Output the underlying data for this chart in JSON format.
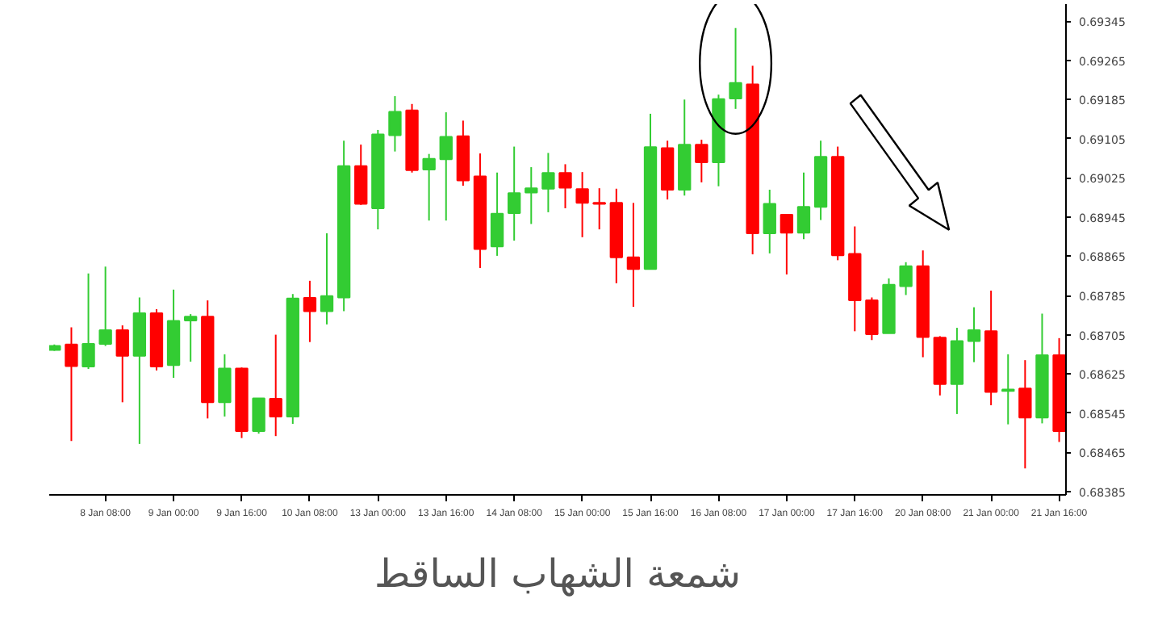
{
  "chart_data": {
    "type": "candlestick",
    "title": "شمعة الشهاب الساقط",
    "categories": [
      null,
      null,
      null,
      "8 Jan 08:00",
      null,
      null,
      null,
      "9 Jan 00:00",
      null,
      null,
      null,
      "9 Jan 16:00",
      null,
      null,
      null,
      "10 Jan 08:00",
      null,
      null,
      null,
      "13 Jan 00:00",
      null,
      null,
      null,
      "13 Jan 16:00",
      null,
      null,
      null,
      "14 Jan 08:00",
      null,
      null,
      null,
      "15 Jan 00:00",
      null,
      null,
      null,
      "15 Jan 16:00",
      null,
      null,
      null,
      "16 Jan 08:00",
      null,
      null,
      null,
      "17 Jan 00:00",
      null,
      null,
      null,
      "17 Jan 16:00",
      null,
      null,
      null,
      "20 Jan 08:00",
      null,
      null,
      null,
      "21 Jan 00:00",
      null,
      null,
      null,
      "21 Jan 16:00"
    ],
    "ohlc": [
      [
        0.68674,
        0.68685,
        0.68672,
        0.68682
      ],
      [
        0.68685,
        0.6872,
        0.68488,
        0.68641
      ],
      [
        0.6864,
        0.6883,
        0.68635,
        0.68686
      ],
      [
        0.68686,
        0.68844,
        0.68682,
        0.68714
      ],
      [
        0.68714,
        0.68724,
        0.68567,
        0.68662
      ],
      [
        0.68662,
        0.68781,
        0.68482,
        0.68749
      ],
      [
        0.68749,
        0.68757,
        0.68632,
        0.6864
      ],
      [
        0.68643,
        0.68797,
        0.68617,
        0.68733
      ],
      [
        0.68734,
        0.68747,
        0.6865,
        0.68742
      ],
      [
        0.68742,
        0.68775,
        0.68534,
        0.68567
      ],
      [
        0.68567,
        0.68665,
        0.68538,
        0.68636
      ],
      [
        0.68636,
        0.68638,
        0.68494,
        0.68508
      ],
      [
        0.68508,
        0.68575,
        0.68503,
        0.68575
      ],
      [
        0.68574,
        0.68705,
        0.68498,
        0.68538
      ],
      [
        0.68538,
        0.68788,
        0.68523,
        0.68779
      ],
      [
        0.6878,
        0.68815,
        0.6869,
        0.68753
      ],
      [
        0.68753,
        0.68912,
        0.68726,
        0.68784
      ],
      [
        0.68781,
        0.69101,
        0.68753,
        0.69049
      ],
      [
        0.69049,
        0.69093,
        0.6897,
        0.68972
      ],
      [
        0.68963,
        0.69123,
        0.6892,
        0.69114
      ],
      [
        0.69112,
        0.69192,
        0.69079,
        0.6916
      ],
      [
        0.69163,
        0.69176,
        0.69036,
        0.69041
      ],
      [
        0.69042,
        0.69074,
        0.68938,
        0.69064
      ],
      [
        0.69063,
        0.69159,
        0.68938,
        0.69109
      ],
      [
        0.6911,
        0.69142,
        0.69009,
        0.6902
      ],
      [
        0.69028,
        0.69075,
        0.68841,
        0.6888
      ],
      [
        0.68885,
        0.69036,
        0.68866,
        0.68952
      ],
      [
        0.68953,
        0.69089,
        0.68897,
        0.68994
      ],
      [
        0.68995,
        0.69047,
        0.68931,
        0.69004
      ],
      [
        0.69003,
        0.69076,
        0.68955,
        0.69035
      ],
      [
        0.69035,
        0.69053,
        0.68963,
        0.69005
      ],
      [
        0.69002,
        0.69037,
        0.68904,
        0.68974
      ],
      [
        0.68974,
        0.69004,
        0.6892,
        0.68972
      ],
      [
        0.68974,
        0.69003,
        0.6881,
        0.68863
      ],
      [
        0.68863,
        0.68974,
        0.68762,
        0.68839
      ],
      [
        0.68839,
        0.69156,
        0.68839,
        0.69088
      ],
      [
        0.69086,
        0.69101,
        0.68981,
        0.69001
      ],
      [
        0.69001,
        0.69185,
        0.68989,
        0.69093
      ],
      [
        0.69093,
        0.69103,
        0.69016,
        0.69057
      ],
      [
        0.69057,
        0.69195,
        0.69008,
        0.69186
      ],
      [
        0.69187,
        0.69331,
        0.69166,
        0.69219
      ],
      [
        0.69216,
        0.69254,
        0.68869,
        0.68912
      ],
      [
        0.68912,
        0.69001,
        0.68871,
        0.68972
      ],
      [
        0.6895,
        0.6895,
        0.68828,
        0.68913
      ],
      [
        0.68913,
        0.69036,
        0.689,
        0.68966
      ],
      [
        0.68966,
        0.69101,
        0.68939,
        0.69068
      ],
      [
        0.69068,
        0.69089,
        0.68857,
        0.68867
      ],
      [
        0.6887,
        0.68926,
        0.68712,
        0.68775
      ],
      [
        0.68775,
        0.68781,
        0.68694,
        0.68706
      ],
      [
        0.68708,
        0.6882,
        0.68708,
        0.68807
      ],
      [
        0.68804,
        0.68853,
        0.68786,
        0.68845
      ],
      [
        0.68845,
        0.68877,
        0.68659,
        0.687
      ],
      [
        0.68699,
        0.68702,
        0.68581,
        0.68604
      ],
      [
        0.68604,
        0.68719,
        0.68543,
        0.68692
      ],
      [
        0.68692,
        0.68761,
        0.68649,
        0.68714
      ],
      [
        0.68712,
        0.68795,
        0.68561,
        0.68588
      ],
      [
        0.6859,
        0.68665,
        0.68522,
        0.68593
      ],
      [
        0.68595,
        0.68653,
        0.68432,
        0.68536
      ],
      [
        0.68536,
        0.68748,
        0.68524,
        0.68663
      ],
      [
        0.68663,
        0.68698,
        0.68486,
        0.68508
      ]
    ],
    "colors": [
      "#33cc33",
      "#ff0000",
      "#33cc33",
      "#33cc33",
      "#ff0000",
      "#33cc33",
      "#ff0000",
      "#33cc33",
      "#33cc33",
      "#ff0000",
      "#33cc33",
      "#ff0000",
      "#33cc33",
      "#ff0000",
      "#33cc33",
      "#ff0000",
      "#33cc33",
      "#33cc33",
      "#ff0000",
      "#33cc33",
      "#33cc33",
      "#ff0000",
      "#33cc33",
      "#33cc33",
      "#ff0000",
      "#ff0000",
      "#33cc33",
      "#33cc33",
      "#33cc33",
      "#33cc33",
      "#ff0000",
      "#ff0000",
      "#ff0000",
      "#ff0000",
      "#ff0000",
      "#33cc33",
      "#ff0000",
      "#33cc33",
      "#ff0000",
      "#33cc33",
      "#33cc33",
      "#ff0000",
      "#33cc33",
      "#ff0000",
      "#33cc33",
      "#33cc33",
      "#ff0000",
      "#ff0000",
      "#ff0000",
      "#33cc33",
      "#33cc33",
      "#ff0000",
      "#ff0000",
      "#33cc33",
      "#33cc33",
      "#ff0000",
      "#33cc33",
      "#ff0000",
      "#33cc33",
      "#ff0000"
    ],
    "ylim": [
      0.68378,
      0.6938
    ],
    "yticks": [
      0.68385,
      0.68465,
      0.68545,
      0.68625,
      0.68705,
      0.68785,
      0.68865,
      0.68945,
      0.69025,
      0.69105,
      0.69185,
      0.69265,
      0.69345
    ]
  }
}
